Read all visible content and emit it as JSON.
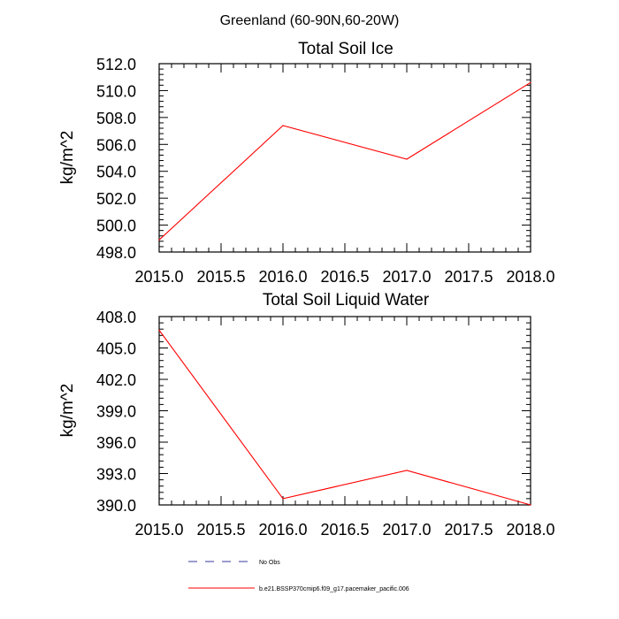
{
  "figure": {
    "title": "Greenland (60-90N,60-20W)"
  },
  "legend": {
    "items": [
      {
        "label": "No Obs",
        "color": "#3a3aa0",
        "dash": true
      },
      {
        "label": "b.e21.BSSP370cmip6.f09_g17.pacemaker_pacific.006",
        "color": "#ff0000",
        "dash": false
      }
    ]
  },
  "chart_data": [
    {
      "type": "line",
      "title": "Total Soil Ice",
      "ylabel": "kg/m^2",
      "xlabel": "",
      "xlim": [
        2015.0,
        2018.0
      ],
      "ylim": [
        498.0,
        512.0
      ],
      "xticks": [
        "2015.0",
        "2015.5",
        "2016.0",
        "2016.5",
        "2017.0",
        "2017.5",
        "2018.0"
      ],
      "yticks": [
        "498.0",
        "500.0",
        "502.0",
        "504.0",
        "506.0",
        "508.0",
        "510.0",
        "512.0"
      ],
      "grid": false,
      "series": [
        {
          "color": "#ff0000",
          "x": [
            2015.0,
            2016.0,
            2017.0,
            2018.0
          ],
          "y": [
            498.9,
            507.4,
            504.9,
            510.6
          ]
        }
      ]
    },
    {
      "type": "line",
      "title": "Total Soil Liquid Water",
      "ylabel": "kg/m^2",
      "xlabel": "",
      "xlim": [
        2015.0,
        2018.0
      ],
      "ylim": [
        390.0,
        408.0
      ],
      "xticks": [
        "2015.0",
        "2015.5",
        "2016.0",
        "2016.5",
        "2017.0",
        "2017.5",
        "2018.0"
      ],
      "yticks": [
        "390.0",
        "393.0",
        "396.0",
        "399.0",
        "402.0",
        "405.0",
        "408.0"
      ],
      "grid": false,
      "series": [
        {
          "color": "#ff0000",
          "x": [
            2015.0,
            2016.0,
            2017.0,
            2018.0
          ],
          "y": [
            406.7,
            390.6,
            393.3,
            390.0
          ]
        }
      ]
    }
  ]
}
